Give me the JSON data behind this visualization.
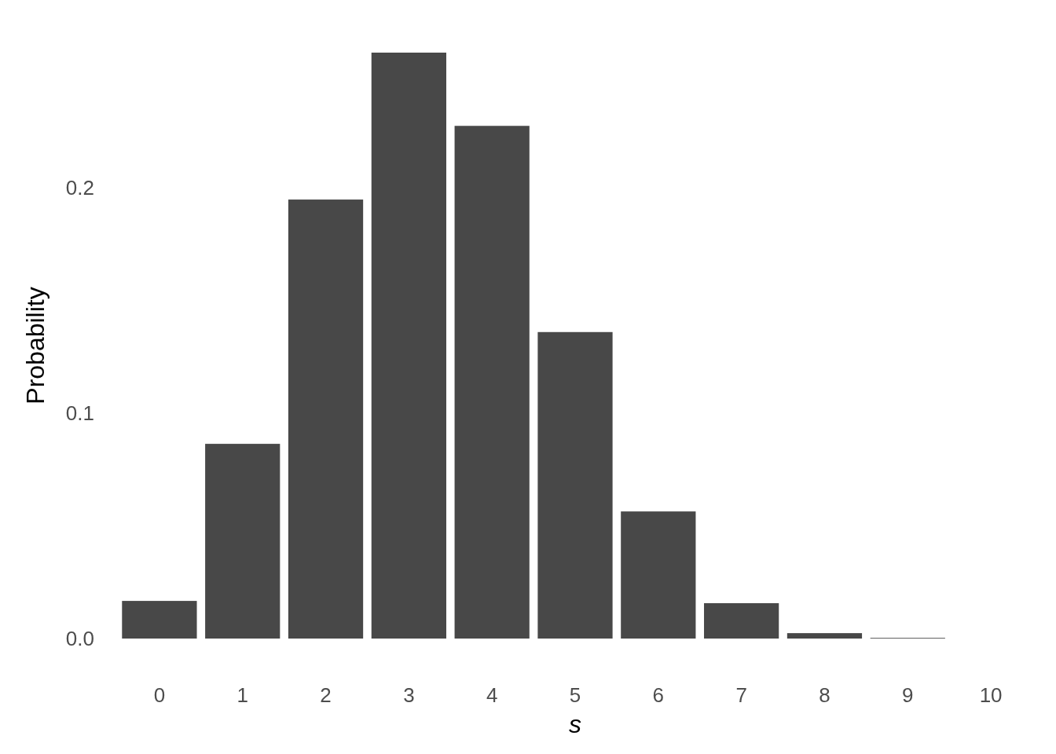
{
  "chart_data": {
    "type": "bar",
    "xlabel": "s",
    "ylabel": "Probability",
    "categories": [
      "0",
      "1",
      "2",
      "3",
      "4",
      "5",
      "6",
      "7",
      "8",
      "9",
      "10"
    ],
    "values": [
      0.0167,
      0.0864,
      0.1948,
      0.26,
      0.2275,
      0.136,
      0.0564,
      0.0157,
      0.0024,
      0.0003,
      0
    ],
    "color": "#484848",
    "ylim": [
      0,
      0.26
    ],
    "yticks": [
      {
        "value": 0,
        "label": "0.0"
      },
      {
        "value": 0.1,
        "label": "0.1"
      },
      {
        "value": 0.2,
        "label": "0.2"
      }
    ],
    "grid": false
  }
}
